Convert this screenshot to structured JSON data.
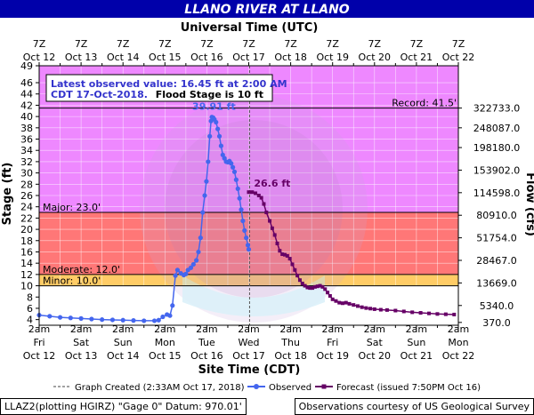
{
  "title": "LLANO RIVER AT LLANO",
  "top_axis_title": "Universal Time (UTC)",
  "bottom_axis_title": "Site Time (CDT)",
  "colors": {
    "title_bg": "#0000aa",
    "record_band": "#ee88ff",
    "major_band": "#ff7777",
    "moderate_band": "#ff7777",
    "minor_band": "#ffcc66",
    "normal_band": "#ffffff",
    "observed": "#4466ee",
    "forecast": "#660066"
  },
  "chart_data": {
    "type": "line",
    "title": "LLANO RIVER AT LLANO",
    "ylabel": "Stage (ft)",
    "y2label": "Flow (cfs)",
    "ylim": [
      3,
      49
    ],
    "yticks": [
      4,
      6,
      8,
      10,
      12,
      14,
      16,
      18,
      20,
      22,
      24,
      26,
      28,
      30,
      32,
      34,
      36,
      38,
      40,
      42,
      44,
      46,
      49
    ],
    "flow_ticks": [
      {
        "stage": 41.5,
        "label": "322733.0"
      },
      {
        "stage": 38,
        "label": "248087.0"
      },
      {
        "stage": 34.5,
        "label": "198180.0"
      },
      {
        "stage": 30.5,
        "label": "153902.0"
      },
      {
        "stage": 26.5,
        "label": "114598.0"
      },
      {
        "stage": 22.5,
        "label": "80910.0"
      },
      {
        "stage": 18.5,
        "label": "51754.0"
      },
      {
        "stage": 14.5,
        "label": "28467.0"
      },
      {
        "stage": 10.5,
        "label": "13669.0"
      },
      {
        "stage": 6.5,
        "label": "5340.0"
      },
      {
        "stage": 3.5,
        "label": "370.0"
      }
    ],
    "xlim": [
      0,
      10
    ],
    "top_ticks": [
      {
        "x": 0,
        "hour": "7Z",
        "date": "Oct 12"
      },
      {
        "x": 1,
        "hour": "7Z",
        "date": "Oct 13"
      },
      {
        "x": 2,
        "hour": "7Z",
        "date": "Oct 14"
      },
      {
        "x": 3,
        "hour": "7Z",
        "date": "Oct 15"
      },
      {
        "x": 4,
        "hour": "7Z",
        "date": "Oct 16"
      },
      {
        "x": 5,
        "hour": "7Z",
        "date": "Oct 17"
      },
      {
        "x": 6,
        "hour": "7Z",
        "date": "Oct 18"
      },
      {
        "x": 7,
        "hour": "7Z",
        "date": "Oct 19"
      },
      {
        "x": 8,
        "hour": "7Z",
        "date": "Oct 20"
      },
      {
        "x": 9,
        "hour": "7Z",
        "date": "Oct 21"
      },
      {
        "x": 10,
        "hour": "7Z",
        "date": "Oct 22"
      }
    ],
    "bottom_ticks": [
      {
        "x": 0,
        "time": "2am",
        "day": "Fri",
        "date": "Oct 12"
      },
      {
        "x": 1,
        "time": "2am",
        "day": "Sat",
        "date": "Oct 13"
      },
      {
        "x": 2,
        "time": "2am",
        "day": "Sun",
        "date": "Oct 14"
      },
      {
        "x": 3,
        "time": "2am",
        "day": "Mon",
        "date": "Oct 15"
      },
      {
        "x": 4,
        "time": "2am",
        "day": "Tue",
        "date": "Oct 16"
      },
      {
        "x": 5,
        "time": "2am",
        "day": "Wed",
        "date": "Oct 17"
      },
      {
        "x": 6,
        "time": "2am",
        "day": "Thu",
        "date": "Oct 18"
      },
      {
        "x": 7,
        "time": "2am",
        "day": "Fri",
        "date": "Oct 19"
      },
      {
        "x": 8,
        "time": "2am",
        "day": "Sat",
        "date": "Oct 20"
      },
      {
        "x": 9,
        "time": "2am",
        "day": "Sun",
        "date": "Oct 21"
      },
      {
        "x": 10,
        "time": "2am",
        "day": "Mon",
        "date": "Oct 22"
      }
    ],
    "thresholds": [
      {
        "name": "record",
        "label": "Record: 41.5'",
        "value": 41.5
      },
      {
        "name": "major",
        "label": "Major: 23.0'",
        "value": 23.0
      },
      {
        "name": "moderate",
        "label": "Moderate: 12.0'",
        "value": 12.0
      },
      {
        "name": "minor",
        "label": "Minor: 10.0'",
        "value": 10.0
      }
    ],
    "info_box": {
      "line1": "Latest observed value: 16.45 ft at 2:00 AM",
      "line2a": "CDT 17-Oct-2018.",
      "line2b": "Flood Stage is 10 ft"
    },
    "peak_label": "39.91 ft",
    "peak": {
      "x": 4.12,
      "y": 39.91
    },
    "forecast_label": "26.6 ft",
    "forecast_peak": {
      "x": 5.04,
      "y": 26.6
    },
    "graph_created_x": 5.02,
    "series": [
      {
        "name": "Observed",
        "points": [
          [
            0.0,
            4.8
          ],
          [
            0.25,
            4.6
          ],
          [
            0.5,
            4.4
          ],
          [
            0.75,
            4.3
          ],
          [
            1.0,
            4.2
          ],
          [
            1.25,
            4.1
          ],
          [
            1.5,
            4.0
          ],
          [
            1.75,
            3.95
          ],
          [
            2.0,
            3.9
          ],
          [
            2.25,
            3.85
          ],
          [
            2.5,
            3.8
          ],
          [
            2.75,
            3.8
          ],
          [
            2.85,
            3.9
          ],
          [
            2.95,
            4.5
          ],
          [
            3.05,
            4.9
          ],
          [
            3.12,
            4.7
          ],
          [
            3.18,
            6.5
          ],
          [
            3.25,
            11.8
          ],
          [
            3.3,
            12.8
          ],
          [
            3.38,
            12.2
          ],
          [
            3.45,
            11.9
          ],
          [
            3.5,
            12.1
          ],
          [
            3.55,
            12.8
          ],
          [
            3.62,
            13.2
          ],
          [
            3.68,
            13.8
          ],
          [
            3.75,
            14.5
          ],
          [
            3.8,
            16.0
          ],
          [
            3.85,
            18.5
          ],
          [
            3.9,
            23.0
          ],
          [
            3.95,
            26.0
          ],
          [
            3.99,
            28.5
          ],
          [
            4.03,
            32.0
          ],
          [
            4.07,
            36.5
          ],
          [
            4.1,
            39.2
          ],
          [
            4.12,
            39.91
          ],
          [
            4.15,
            39.8
          ],
          [
            4.18,
            39.5
          ],
          [
            4.22,
            39.0
          ],
          [
            4.26,
            37.8
          ],
          [
            4.3,
            36.5
          ],
          [
            4.34,
            34.8
          ],
          [
            4.38,
            33.2
          ],
          [
            4.42,
            32.6
          ],
          [
            4.46,
            32.0
          ],
          [
            4.5,
            31.9
          ],
          [
            4.54,
            32.1
          ],
          [
            4.58,
            31.7
          ],
          [
            4.62,
            31.0
          ],
          [
            4.66,
            30.2
          ],
          [
            4.7,
            28.8
          ],
          [
            4.74,
            27.2
          ],
          [
            4.78,
            25.5
          ],
          [
            4.82,
            23.5
          ],
          [
            4.86,
            21.5
          ],
          [
            4.9,
            19.8
          ],
          [
            4.94,
            18.5
          ],
          [
            4.98,
            17.2
          ],
          [
            5.0,
            16.45
          ]
        ]
      },
      {
        "name": "Forecast (issued 7:50PM Oct 16)",
        "points": [
          [
            5.0,
            26.6
          ],
          [
            5.08,
            26.6
          ],
          [
            5.16,
            26.4
          ],
          [
            5.24,
            26.0
          ],
          [
            5.3,
            25.6
          ],
          [
            5.36,
            24.5
          ],
          [
            5.42,
            23.0
          ],
          [
            5.5,
            21.5
          ],
          [
            5.56,
            20.2
          ],
          [
            5.62,
            19.0
          ],
          [
            5.68,
            17.5
          ],
          [
            5.74,
            16.2
          ],
          [
            5.8,
            15.6
          ],
          [
            5.86,
            15.5
          ],
          [
            5.92,
            15.3
          ],
          [
            5.98,
            14.8
          ],
          [
            6.04,
            13.8
          ],
          [
            6.1,
            12.8
          ],
          [
            6.16,
            11.8
          ],
          [
            6.22,
            11.0
          ],
          [
            6.28,
            10.4
          ],
          [
            6.34,
            10.0
          ],
          [
            6.4,
            9.7
          ],
          [
            6.46,
            9.6
          ],
          [
            6.52,
            9.6
          ],
          [
            6.58,
            9.8
          ],
          [
            6.64,
            9.9
          ],
          [
            6.7,
            10.0
          ],
          [
            6.76,
            9.8
          ],
          [
            6.82,
            9.4
          ],
          [
            6.88,
            8.8
          ],
          [
            6.94,
            8.2
          ],
          [
            7.0,
            7.6
          ],
          [
            7.08,
            7.3
          ],
          [
            7.16,
            7.0
          ],
          [
            7.24,
            6.9
          ],
          [
            7.32,
            7.0
          ],
          [
            7.4,
            6.8
          ],
          [
            7.5,
            6.6
          ],
          [
            7.6,
            6.4
          ],
          [
            7.7,
            6.2
          ],
          [
            7.8,
            6.05
          ],
          [
            7.9,
            5.95
          ],
          [
            8.0,
            5.85
          ],
          [
            8.15,
            5.75
          ],
          [
            8.3,
            5.7
          ],
          [
            8.5,
            5.6
          ],
          [
            8.7,
            5.45
          ],
          [
            8.9,
            5.3
          ],
          [
            9.1,
            5.2
          ],
          [
            9.3,
            5.1
          ],
          [
            9.5,
            5.0
          ],
          [
            9.7,
            4.95
          ],
          [
            9.9,
            4.9
          ]
        ]
      }
    ]
  },
  "legend": {
    "graph_created": "Graph Created (2:33AM Oct 17, 2018)",
    "observed": "Observed",
    "forecast": "Forecast (issued 7:50PM Oct 16)"
  },
  "footer": {
    "left": "LLAZ2(plotting HGIRZ) \"Gage 0\" Datum: 970.01'",
    "right": "Observations courtesy of US Geological Survey"
  }
}
